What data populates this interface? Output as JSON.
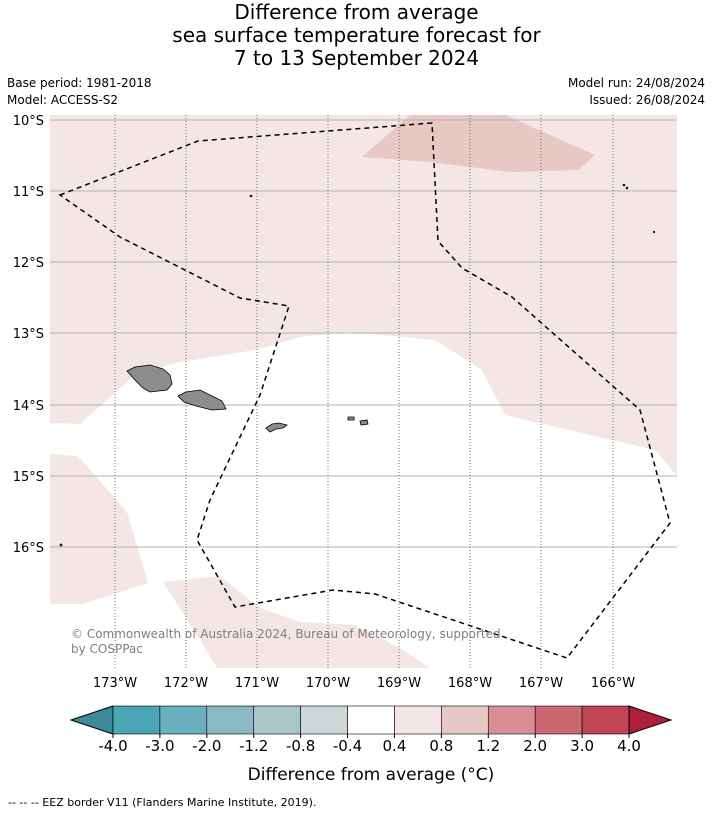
{
  "title": {
    "line1": "Difference from average",
    "line2": "sea surface temperature forecast for",
    "line3": "7 to 13 September 2024"
  },
  "meta": {
    "base_period": "Base period: 1981-2018",
    "model": "Model: ACCESS-S2",
    "model_run": "Model run: 24/08/2024",
    "issued": "Issued: 26/08/2024"
  },
  "map": {
    "lat_labels": [
      "10°S",
      "11°S",
      "12°S",
      "13°S",
      "14°S",
      "15°S",
      "16°S"
    ],
    "lon_labels": [
      "173°W",
      "172°W",
      "171°W",
      "170°W",
      "169°W",
      "168°W",
      "167°W",
      "166°W"
    ],
    "copyright_line1": "© Commonwealth of Australia 2024, Bureau of Meteorology, supported",
    "copyright_line2": "by COSPPac",
    "colors": {
      "anomaly_0_4_to_0_8": "#f4e6e5",
      "anomaly_0_8_to_1_2": "#e8c8c5",
      "neutral": "#ffffff",
      "land": "#8c8c8c",
      "gridline": "#b3b3b3",
      "eez_border": "#000000"
    }
  },
  "colorbar": {
    "title": "Difference from average (°C)",
    "tick_labels": [
      "-4.0",
      "-3.0",
      "-2.0",
      "-1.2",
      "-0.8",
      "-0.4",
      "0.4",
      "0.8",
      "1.2",
      "2.0",
      "3.0",
      "4.0"
    ],
    "colors": [
      "#3b8a99",
      "#4aa5b5",
      "#6aafc0",
      "#8ab8c3",
      "#a9c6ca",
      "#cfd8d9",
      "#ffffff",
      "#f4e6e5",
      "#e8c8c5",
      "#d98e94",
      "#cc6673",
      "#c04557",
      "#b01e3c"
    ]
  },
  "footer": {
    "legend": "--  --  -- EEZ border V11 (Flanders Marine Institute, 2019)."
  }
}
